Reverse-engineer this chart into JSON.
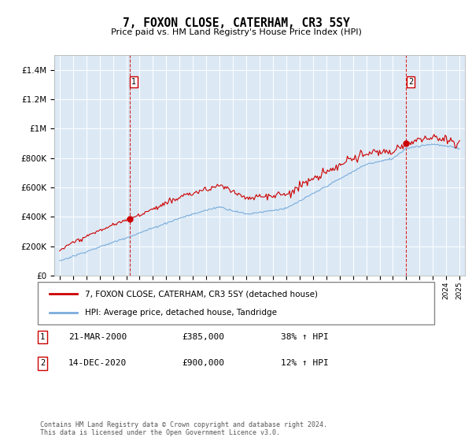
{
  "title": "7, FOXON CLOSE, CATERHAM, CR3 5SY",
  "subtitle": "Price paid vs. HM Land Registry's House Price Index (HPI)",
  "bg_color": "#dce9f5",
  "outer_bg_color": "#ffffff",
  "red_color": "#cc0000",
  "blue_color": "#7aaddc",
  "marker1_date_x": 2000.21,
  "marker1_y": 385000,
  "marker2_date_x": 2020.96,
  "marker2_y": 900000,
  "ylim": [
    0,
    1500000
  ],
  "xlim_start": 1994.6,
  "xlim_end": 2025.4,
  "yticks": [
    0,
    200000,
    400000,
    600000,
    800000,
    1000000,
    1200000,
    1400000
  ],
  "ytick_labels": [
    "£0",
    "£200K",
    "£400K",
    "£600K",
    "£800K",
    "£1M",
    "£1.2M",
    "£1.4M"
  ],
  "xtick_years": [
    1995,
    1996,
    1997,
    1998,
    1999,
    2000,
    2001,
    2002,
    2003,
    2004,
    2005,
    2006,
    2007,
    2008,
    2009,
    2010,
    2011,
    2012,
    2013,
    2014,
    2015,
    2016,
    2017,
    2018,
    2019,
    2020,
    2021,
    2022,
    2023,
    2024,
    2025
  ],
  "legend_red_label": "7, FOXON CLOSE, CATERHAM, CR3 5SY (detached house)",
  "legend_blue_label": "HPI: Average price, detached house, Tandridge",
  "annotation1_label": "1",
  "annotation1_date": "21-MAR-2000",
  "annotation1_price": "£385,000",
  "annotation1_hpi": "38% ↑ HPI",
  "annotation2_label": "2",
  "annotation2_date": "14-DEC-2020",
  "annotation2_price": "£900,000",
  "annotation2_hpi": "12% ↑ HPI",
  "footer": "Contains HM Land Registry data © Crown copyright and database right 2024.\nThis data is licensed under the Open Government Licence v3.0."
}
